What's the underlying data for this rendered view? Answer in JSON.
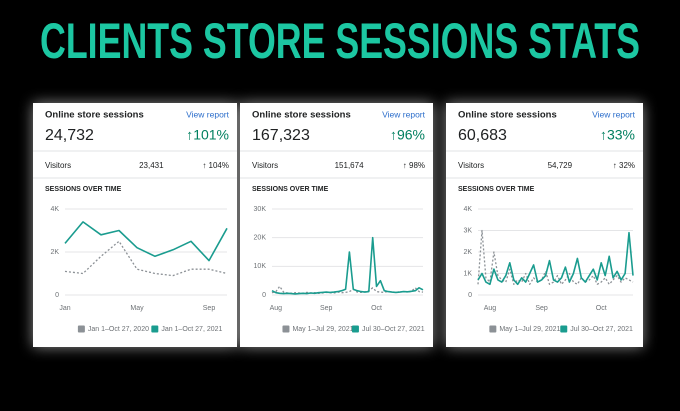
{
  "title": "CLIENTS STORE SESSIONS STATS",
  "chart_data": [
    {
      "type": "line",
      "heading": "Online store sessions",
      "link": "View report",
      "total": "24,732",
      "change": "↑101%",
      "visitors_label": "Visitors",
      "visitors": "23,431",
      "visitors_change": "↑ 104%",
      "title": "SESSIONS OVER TIME",
      "categories": [
        "Jan",
        null,
        null,
        null,
        "May",
        null,
        null,
        null,
        "Sep",
        null
      ],
      "series": [
        {
          "name": "Jan 1–Oct 27, 2020",
          "color": "#8c9196",
          "values": [
            1100,
            1000,
            1800,
            2500,
            1200,
            1000,
            900,
            1200,
            1200,
            1000
          ]
        },
        {
          "name": "Jan 1–Oct 27, 2021",
          "color": "#1a9c8f",
          "values": [
            2400,
            3400,
            2800,
            3000,
            2200,
            1800,
            2100,
            2500,
            1600,
            3100
          ]
        }
      ],
      "ylim": [
        0,
        4000
      ],
      "yticks": [
        0,
        {
          "value": 2000,
          "label": "2K"
        },
        {
          "value": 4000,
          "label": "4K"
        }
      ]
    },
    {
      "type": "line",
      "heading": "Online store sessions",
      "link": "View report",
      "total": "167,323",
      "change": "↑96%",
      "visitors_label": "Visitors",
      "visitors": "151,674",
      "visitors_change": "↑ 98%",
      "title": "SESSIONS OVER TIME",
      "categories": [
        null,
        "Aug",
        null,
        null,
        null,
        null,
        null,
        null,
        null,
        null,
        null,
        null,
        null,
        null,
        "Sep",
        null,
        null,
        null,
        null,
        null,
        null,
        null,
        null,
        null,
        null,
        null,
        null,
        "Oct",
        null,
        null,
        null,
        null,
        null,
        null,
        null,
        null,
        null,
        null,
        null,
        null
      ],
      "series": [
        {
          "name": "May 1–Jul 29, 2021",
          "color": "#8c9196",
          "values": [
            800,
            1200,
            3000,
            1000,
            700,
            600,
            800,
            700,
            600,
            900,
            700,
            800,
            600,
            700,
            900,
            800,
            700,
            1000,
            800,
            900,
            1200,
            2000,
            1000,
            900,
            1100,
            1500,
            2500,
            1200,
            1000,
            900,
            1300,
            1000,
            900,
            1100,
            1200,
            1000,
            1300,
            2500,
            1200,
            1000
          ]
        },
        {
          "name": "Jul 30–Oct 27, 2021",
          "color": "#1a9c8f",
          "values": [
            1500,
            800,
            600,
            500,
            600,
            500,
            400,
            500,
            600,
            500,
            700,
            600,
            800,
            900,
            1000,
            900,
            1000,
            1200,
            1500,
            2000,
            15000,
            2000,
            1500,
            1200,
            1000,
            1200,
            20000,
            3000,
            5000,
            1500,
            1200,
            1000,
            900,
            1000,
            1200,
            1100,
            1300,
            1500,
            2500,
            1800
          ]
        }
      ],
      "ylim": [
        0,
        30000
      ],
      "yticks": [
        0,
        {
          "value": 10000,
          "label": "10K"
        },
        {
          "value": 20000,
          "label": "20K"
        },
        {
          "value": 30000,
          "label": "30K"
        }
      ]
    },
    {
      "type": "line",
      "heading": "Online store sessions",
      "link": "View report",
      "total": "60,683",
      "change": "↑33%",
      "visitors_label": "Visitors",
      "visitors": "54,729",
      "visitors_change": "↑ 32%",
      "title": "SESSIONS OVER TIME",
      "categories": [
        null,
        null,
        null,
        "Aug",
        null,
        null,
        null,
        null,
        null,
        null,
        null,
        null,
        null,
        null,
        null,
        null,
        "Sep",
        null,
        null,
        null,
        null,
        null,
        null,
        null,
        null,
        null,
        null,
        null,
        null,
        null,
        null,
        "Oct",
        null,
        null,
        null,
        null,
        null,
        null,
        null,
        null
      ],
      "series": [
        {
          "name": "May 1–Jul 29, 2021",
          "color": "#8c9196",
          "values": [
            500,
            3000,
            800,
            600,
            2000,
            900,
            700,
            600,
            1200,
            500,
            700,
            600,
            1000,
            500,
            800,
            600,
            700,
            1100,
            500,
            600,
            900,
            500,
            700,
            1000,
            600,
            500,
            800,
            600,
            700,
            900,
            500,
            600,
            800,
            500,
            700,
            900,
            600,
            800,
            700,
            600
          ]
        },
        {
          "name": "Jul 30–Oct 27, 2021",
          "color": "#1a9c8f",
          "values": [
            700,
            1000,
            600,
            500,
            1200,
            700,
            600,
            900,
            1500,
            700,
            500,
            800,
            600,
            1000,
            1400,
            600,
            700,
            900,
            1600,
            700,
            600,
            800,
            1300,
            600,
            1000,
            1700,
            800,
            600,
            900,
            1200,
            700,
            1500,
            900,
            1800,
            800,
            1100,
            700,
            1000,
            2900,
            900
          ]
        }
      ],
      "ylim": [
        0,
        4000
      ],
      "yticks": [
        0,
        {
          "value": 1000,
          "label": "1K"
        },
        {
          "value": 2000,
          "label": "2K"
        },
        {
          "value": 3000,
          "label": "3K"
        },
        {
          "value": 4000,
          "label": "4K"
        }
      ]
    }
  ]
}
